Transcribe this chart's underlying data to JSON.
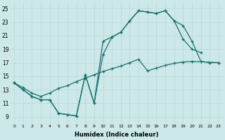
{
  "xlabel": "Humidex (Indice chaleur)",
  "bg_color": "#cde8e8",
  "grid_color": "#b8d8d8",
  "line_color": "#1a7070",
  "xlim": [
    -0.5,
    23.5
  ],
  "ylim": [
    8.0,
    26.0
  ],
  "xticks": [
    0,
    1,
    2,
    3,
    4,
    5,
    6,
    7,
    8,
    9,
    10,
    11,
    12,
    13,
    14,
    15,
    16,
    17,
    18,
    19,
    20,
    21,
    22,
    23
  ],
  "yticks": [
    9,
    11,
    13,
    15,
    17,
    19,
    21,
    23,
    25
  ],
  "line_a_x": [
    0,
    1,
    2,
    3,
    4,
    5,
    6,
    7,
    8,
    9,
    10,
    11,
    12,
    13,
    14,
    15,
    16,
    17,
    18,
    19,
    20,
    21
  ],
  "line_a_y": [
    14,
    13,
    12,
    11.5,
    11.5,
    9.5,
    9.3,
    9.1,
    15.2,
    11.0,
    20.2,
    20.8,
    21.5,
    23.2,
    24.7,
    24.5,
    24.3,
    24.7,
    23.2,
    20.5,
    19.0,
    18.5
  ],
  "line_b_x": [
    0,
    1,
    2,
    3,
    4,
    5,
    6,
    7,
    8,
    9,
    10,
    11,
    12,
    13,
    14,
    15,
    16,
    17,
    18,
    19,
    20,
    21,
    22,
    23
  ],
  "line_b_y": [
    14,
    13,
    12,
    11.5,
    11.5,
    9.5,
    9.3,
    9.1,
    15.2,
    11.0,
    18.2,
    20.8,
    21.5,
    23.2,
    24.7,
    24.5,
    24.3,
    24.7,
    23.2,
    22.5,
    20.2,
    17.2,
    17.0,
    17.0
  ],
  "line_c_x": [
    0,
    1,
    2,
    3,
    4,
    5,
    6,
    7,
    8,
    9,
    10,
    11,
    12,
    13,
    14,
    15,
    16,
    17,
    18,
    19,
    20,
    23
  ],
  "line_c_y": [
    14.0,
    13.3,
    12.5,
    12.0,
    12.5,
    13.2,
    13.6,
    14.2,
    14.7,
    15.2,
    15.7,
    16.1,
    16.5,
    17.0,
    17.5,
    15.8,
    16.2,
    16.6,
    16.9,
    17.1,
    17.2,
    17.0
  ]
}
